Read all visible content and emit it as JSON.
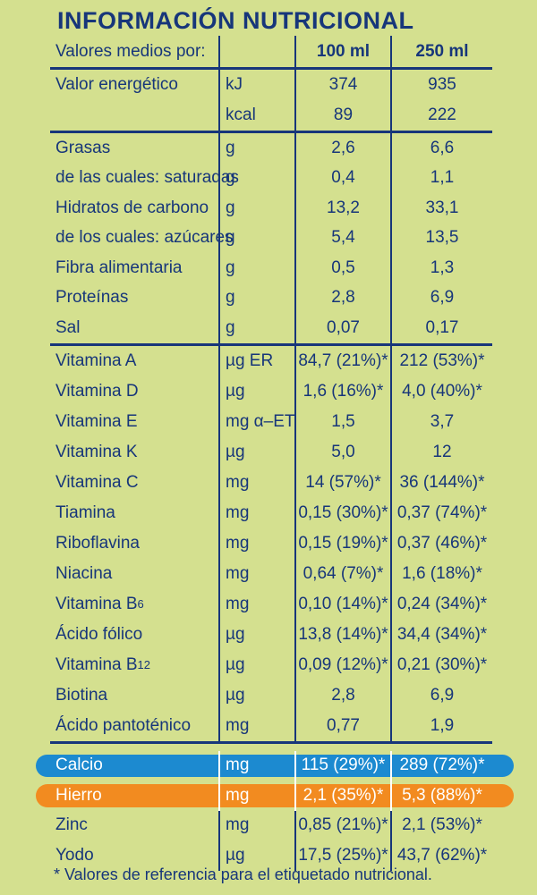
{
  "title": "INFORMACIÓN NUTRICIONAL",
  "header": {
    "label": "Valores medios por:",
    "unit": "",
    "col1": "100 ml",
    "col2": "250 ml"
  },
  "group_energy": [
    {
      "name": "Valor energético",
      "unit": "kJ",
      "v100": "374",
      "v250": "935"
    },
    {
      "name": "",
      "unit": "kcal",
      "v100": "89",
      "v250": "222"
    }
  ],
  "group_macros": [
    {
      "name": "Grasas",
      "unit": "g",
      "v100": "2,6",
      "v250": "6,6"
    },
    {
      "name": "de las cuales: saturadas",
      "unit": "g",
      "v100": "0,4",
      "v250": "1,1"
    },
    {
      "name": "Hidratos de carbono",
      "unit": "g",
      "v100": "13,2",
      "v250": "33,1"
    },
    {
      "name": "de los cuales: azúcares",
      "unit": "g",
      "v100": "5,4",
      "v250": "13,5"
    },
    {
      "name": "Fibra alimentaria",
      "unit": "g",
      "v100": "0,5",
      "v250": "1,3"
    },
    {
      "name": "Proteínas",
      "unit": "g",
      "v100": "2,8",
      "v250": "6,9"
    },
    {
      "name": "Sal",
      "unit": "g",
      "v100": "0,07",
      "v250": "0,17"
    }
  ],
  "group_vitamins": [
    {
      "name": "Vitamina A",
      "unit": "µg ER",
      "v100": "84,7 (21%)*",
      "v250": "212 (53%)*"
    },
    {
      "name": "Vitamina D",
      "unit": "µg",
      "v100": "1,6 (16%)*",
      "v250": "4,0 (40%)*"
    },
    {
      "name": "Vitamina E",
      "unit": "mg α–ET",
      "v100": "1,5",
      "v250": "3,7"
    },
    {
      "name": "Vitamina K",
      "unit": "µg",
      "v100": "5,0",
      "v250": "12"
    },
    {
      "name": "Vitamina C",
      "unit": "mg",
      "v100": "14 (57%)*",
      "v250": "36 (144%)*"
    },
    {
      "name": "Tiamina",
      "unit": "mg",
      "v100": "0,15 (30%)*",
      "v250": "0,37 (74%)*"
    },
    {
      "name": "Riboflavina",
      "unit": "mg",
      "v100": "0,15 (19%)*",
      "v250": "0,37 (46%)*"
    },
    {
      "name": "Niacina",
      "unit": "mg",
      "v100": "0,64 (7%)*",
      "v250": "1,6 (18%)*"
    },
    {
      "name": "Vitamina B",
      "sub": "6",
      "unit": "mg",
      "v100": "0,10 (14%)*",
      "v250": "0,24 (34%)*"
    },
    {
      "name": "Ácido fólico",
      "unit": "µg",
      "v100": "13,8 (14%)*",
      "v250": "34,4 (34%)*"
    },
    {
      "name": "Vitamina B",
      "sub": "12",
      "unit": "µg",
      "v100": "0,09 (12%)*",
      "v250": "0,21 (30%)*"
    },
    {
      "name": "Biotina",
      "unit": "µg",
      "v100": "2,8",
      "v250": "6,9"
    },
    {
      "name": "Ácido pantoténico",
      "unit": "mg",
      "v100": "0,77",
      "v250": "1,9"
    }
  ],
  "group_minerals": [
    {
      "name": "Calcio",
      "unit": "mg",
      "v100": "115 (29%)*",
      "v250": "289 (72%)*",
      "highlight": "#1c8ad0"
    },
    {
      "name": "Hierro",
      "unit": "mg",
      "v100": "2,1 (35%)*",
      "v250": "5,3 (88%)*",
      "highlight": "#f28b20"
    },
    {
      "name": "Zinc",
      "unit": "mg",
      "v100": "0,85 (21%)*",
      "v250": "2,1 (53%)*"
    },
    {
      "name": "Yodo",
      "unit": "µg",
      "v100": "17,5 (25%)*",
      "v250": "43,7 (62%)*"
    }
  ],
  "footnote": "* Valores de referencia para el etiquetado nutricional.",
  "colors": {
    "background": "#d4e08f",
    "text": "#17367a",
    "calcio_band": "#1c8ad0",
    "hierro_band": "#f28b20"
  }
}
